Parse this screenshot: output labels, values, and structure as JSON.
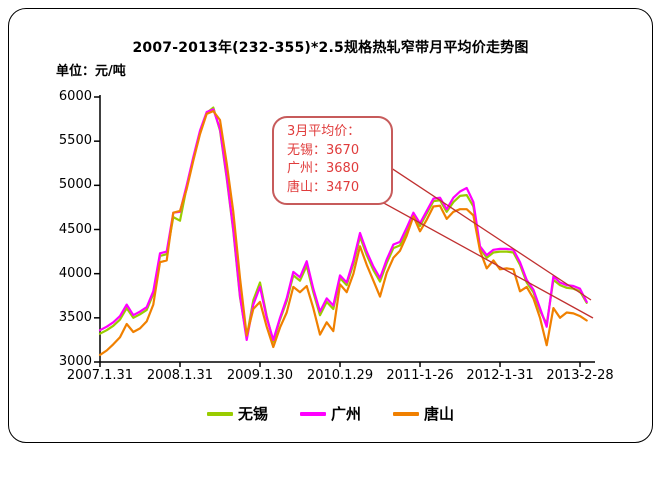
{
  "chart_data": {
    "type": "line",
    "title": "2007-2013年(232-355)*2.5规格热轧窄带月平均价走势图",
    "unit_label": "单位：元/吨",
    "ylim": [
      3000,
      6000
    ],
    "grid": false,
    "legend_position": "bottom",
    "n_points": 74,
    "y_ticks": [
      6000,
      5500,
      5000,
      4500,
      4000,
      3500,
      3000
    ],
    "x_tick_labels": [
      "2007.1.31",
      "2008.1.31",
      "2009.1.30",
      "2010.1.29",
      "2011-1-26",
      "2012-1-31",
      "2013-2-28"
    ],
    "x_tick_indices": [
      0,
      12,
      24,
      36,
      48,
      60,
      72
    ],
    "series": [
      {
        "name": "无锡",
        "color": "#99CC00",
        "values": [
          3320,
          3360,
          3410,
          3480,
          3610,
          3500,
          3540,
          3590,
          3770,
          4200,
          4220,
          4640,
          4600,
          4980,
          5300,
          5600,
          5820,
          5880,
          5620,
          5080,
          4480,
          3730,
          3280,
          3700,
          3900,
          3520,
          3230,
          3480,
          3690,
          3980,
          3920,
          4090,
          3790,
          3530,
          3680,
          3600,
          3950,
          3870,
          4110,
          4420,
          4210,
          4040,
          3910,
          4120,
          4290,
          4320,
          4480,
          4660,
          4540,
          4680,
          4820,
          4830,
          4700,
          4810,
          4880,
          4890,
          4760,
          4290,
          4180,
          4240,
          4250,
          4250,
          4240,
          4100,
          3900,
          3790,
          3580,
          3430,
          3930,
          3870,
          3840,
          3830,
          3800,
          3670
        ]
      },
      {
        "name": "广州",
        "color": "#FF00FF",
        "values": [
          3360,
          3400,
          3450,
          3520,
          3650,
          3530,
          3570,
          3620,
          3800,
          4230,
          4250,
          4690,
          4700,
          5000,
          5320,
          5620,
          5830,
          5860,
          5640,
          5100,
          4500,
          3750,
          3250,
          3650,
          3850,
          3500,
          3250,
          3500,
          3720,
          4020,
          3960,
          4140,
          3830,
          3570,
          3720,
          3640,
          3980,
          3900,
          4150,
          4460,
          4250,
          4080,
          3950,
          4160,
          4330,
          4360,
          4520,
          4690,
          4570,
          4710,
          4850,
          4860,
          4730,
          4860,
          4930,
          4970,
          4810,
          4310,
          4210,
          4270,
          4280,
          4280,
          4270,
          4130,
          3930,
          3820,
          3610,
          3400,
          3970,
          3900,
          3870,
          3860,
          3830,
          3680
        ]
      },
      {
        "name": "唐山",
        "color": "#F08000",
        "values": [
          3080,
          3130,
          3200,
          3280,
          3430,
          3340,
          3380,
          3460,
          3650,
          4130,
          4150,
          4690,
          4710,
          4960,
          5280,
          5580,
          5810,
          5840,
          5740,
          5250,
          4700,
          3950,
          3300,
          3600,
          3680,
          3400,
          3170,
          3390,
          3560,
          3850,
          3790,
          3860,
          3610,
          3310,
          3450,
          3350,
          3880,
          3790,
          4000,
          4310,
          4100,
          3920,
          3740,
          4010,
          4180,
          4260,
          4430,
          4650,
          4480,
          4610,
          4760,
          4770,
          4620,
          4700,
          4730,
          4730,
          4660,
          4260,
          4060,
          4150,
          4050,
          4060,
          4050,
          3800,
          3850,
          3720,
          3500,
          3190,
          3610,
          3500,
          3560,
          3550,
          3520,
          3470
        ]
      }
    ],
    "annotation": {
      "lines": [
        "3月平均价：",
        "无锡：3670",
        "广州：3680",
        "唐山：3470"
      ],
      "border_color": "#C75B5B",
      "text_color": "#E03C3C",
      "pointer_color": "#C03030"
    }
  }
}
